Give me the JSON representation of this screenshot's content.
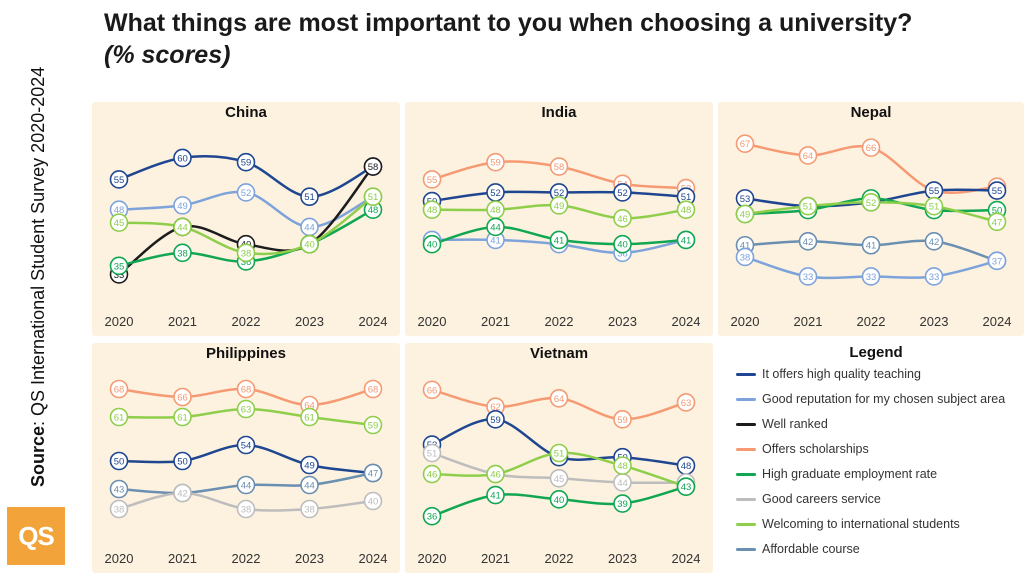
{
  "title": "What things are most important to you when choosing a university?",
  "subtitle": "(% scores)",
  "source_label": "Source",
  "source_text": ": QS International Student Survey 2020-2024",
  "logo_text": "QS",
  "legend": {
    "title": "Legend",
    "items": [
      {
        "label": "It offers high quality teaching",
        "color": "#1f4690"
      },
      {
        "label": "Good reputation for my chosen subject area",
        "color": "#7ea3db"
      },
      {
        "label": "Well ranked",
        "color": "#1c1c1c"
      },
      {
        "label": "Offers scholarships",
        "color": "#f59a72"
      },
      {
        "label": "High graduate employment rate",
        "color": "#11a651"
      },
      {
        "label": "Good careers service",
        "color": "#bdbdbd"
      },
      {
        "label": "Welcoming to international students",
        "color": "#8fce4a"
      },
      {
        "label": "Affordable course",
        "color": "#6a8fb0"
      }
    ]
  },
  "chart_data": [
    {
      "type": "line",
      "title": "China",
      "x": [
        "2020",
        "2021",
        "2022",
        "2023",
        "2024"
      ],
      "ylim": [
        28,
        66
      ],
      "series": [
        {
          "name": "It offers high quality teaching",
          "values": [
            55,
            60,
            59,
            51,
            58
          ]
        },
        {
          "name": "Good reputation for my chosen subject area",
          "values": [
            48,
            49,
            52,
            44,
            51
          ]
        },
        {
          "name": "Well ranked",
          "values": [
            33,
            44,
            40,
            40,
            58
          ]
        },
        {
          "name": "High graduate employment rate",
          "values": [
            35,
            38,
            36,
            40,
            48
          ]
        },
        {
          "name": "Welcoming to international students",
          "values": [
            45,
            44,
            38,
            40,
            51
          ]
        }
      ]
    },
    {
      "type": "line",
      "title": "India",
      "x": [
        "2020",
        "2021",
        "2022",
        "2023",
        "2024"
      ],
      "ylim": [
        28,
        66
      ],
      "series": [
        {
          "name": "Offers scholarships",
          "values": [
            55,
            59,
            58,
            54,
            53
          ]
        },
        {
          "name": "It offers high quality teaching",
          "values": [
            50,
            52,
            52,
            52,
            51
          ]
        },
        {
          "name": "Welcoming to international students",
          "values": [
            48,
            48,
            49,
            46,
            48
          ]
        },
        {
          "name": "Good reputation for my chosen subject area",
          "values": [
            41,
            41,
            40,
            38,
            41
          ]
        },
        {
          "name": "High graduate employment rate",
          "values": [
            40,
            44,
            41,
            40,
            41
          ]
        }
      ]
    },
    {
      "type": "line",
      "title": "Nepal",
      "x": [
        "2020",
        "2021",
        "2022",
        "2023",
        "2024"
      ],
      "ylim": [
        28,
        70
      ],
      "series": [
        {
          "name": "Offers scholarships",
          "values": [
            67,
            64,
            66,
            55,
            56
          ]
        },
        {
          "name": "It offers high quality teaching",
          "values": [
            53,
            51,
            52,
            55,
            55
          ]
        },
        {
          "name": "High graduate employment rate",
          "values": [
            49,
            50,
            53,
            50,
            50
          ]
        },
        {
          "name": "Welcoming to international students",
          "values": [
            49,
            51,
            52,
            51,
            47
          ]
        },
        {
          "name": "Affordable course",
          "values": [
            41,
            42,
            41,
            42,
            37
          ]
        },
        {
          "name": "Good reputation for my chosen subject area",
          "values": [
            38,
            33,
            33,
            33,
            37
          ]
        }
      ]
    },
    {
      "type": "line",
      "title": "Philippines",
      "x": [
        "2020",
        "2021",
        "2022",
        "2023",
        "2024"
      ],
      "ylim": [
        32,
        72
      ],
      "series": [
        {
          "name": "Offers scholarships",
          "values": [
            68,
            66,
            68,
            64,
            68
          ]
        },
        {
          "name": "Welcoming to international students",
          "values": [
            61,
            61,
            63,
            61,
            59
          ]
        },
        {
          "name": "It offers high quality teaching",
          "values": [
            50,
            50,
            54,
            49,
            47
          ]
        },
        {
          "name": "Affordable course",
          "values": [
            43,
            42,
            44,
            44,
            47
          ]
        },
        {
          "name": "Good careers service",
          "values": [
            38,
            42,
            38,
            38,
            40
          ]
        }
      ]
    },
    {
      "type": "line",
      "title": "Vietnam",
      "x": [
        "2020",
        "2021",
        "2022",
        "2023",
        "2024"
      ],
      "ylim": [
        32,
        70
      ],
      "series": [
        {
          "name": "Offers scholarships",
          "values": [
            66,
            62,
            64,
            59,
            63
          ]
        },
        {
          "name": "It offers high quality teaching",
          "values": [
            53,
            59,
            50,
            50,
            48
          ]
        },
        {
          "name": "Good careers service",
          "values": [
            51,
            46,
            45,
            44,
            44
          ]
        },
        {
          "name": "Welcoming to international students",
          "values": [
            46,
            46,
            51,
            48,
            43
          ]
        },
        {
          "name": "High graduate employment rate",
          "values": [
            36,
            41,
            40,
            39,
            43
          ]
        }
      ]
    }
  ]
}
